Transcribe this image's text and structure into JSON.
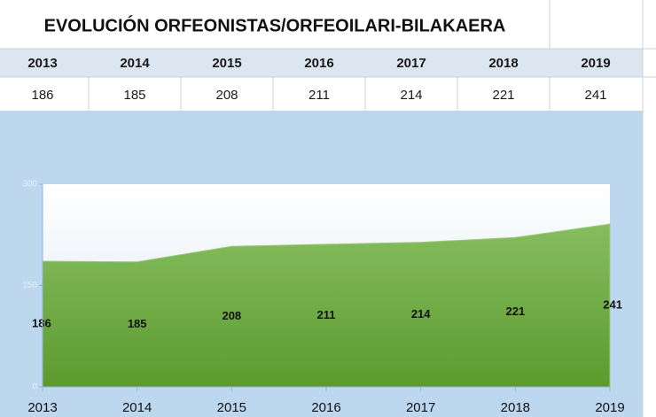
{
  "table": {
    "title": "EVOLUCIÓN ORFEONISTAS/ORFEOILARI-BILAKAERA",
    "headers": [
      "2013",
      "2014",
      "2015",
      "2016",
      "2017",
      "2018",
      "2019"
    ],
    "values": [
      "186",
      "185",
      "208",
      "211",
      "214",
      "221",
      "241"
    ]
  },
  "chart_data": {
    "type": "area",
    "categories": [
      "2013",
      "2014",
      "2015",
      "2016",
      "2017",
      "2018",
      "2019"
    ],
    "values": [
      186,
      185,
      208,
      211,
      214,
      221,
      241
    ],
    "color": "#70ad47",
    "ylim": [
      0,
      300
    ],
    "yticks": [
      0,
      150,
      300
    ]
  }
}
